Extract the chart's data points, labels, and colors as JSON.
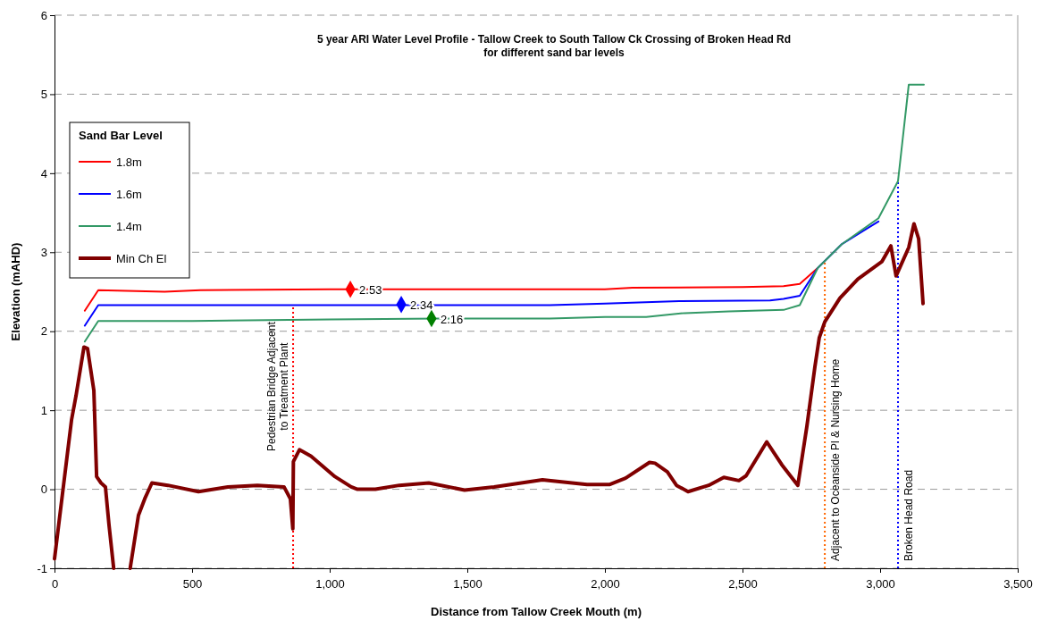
{
  "chart_data": {
    "type": "line",
    "title": "5 year ARI Water Level Profile - Tallow Creek to South Tallow Ck Crossing of Broken Head Rd",
    "subtitle": "for different sand bar levels",
    "xlabel": "Distance from Tallow Creek Mouth (m)",
    "ylabel": "Elevation (mAHD)",
    "legend_title": "Sand Bar Level",
    "legend": "top left",
    "grid": "y",
    "marker": "none",
    "line_style": "solid",
    "xlim": [
      0,
      3500
    ],
    "xticks": [
      0,
      500,
      {
        "value": 1000,
        "label": "1,000"
      },
      {
        "value": 1500,
        "label": "1,500"
      },
      {
        "value": 2000,
        "label": "2,000"
      },
      {
        "value": 2500,
        "label": "2,500"
      },
      {
        "value": 3000,
        "label": "3,000"
      },
      {
        "value": 3500,
        "label": "3,500"
      }
    ],
    "ylim": [
      -1,
      6
    ],
    "yticks": [
      -1,
      0,
      1,
      2,
      3,
      4,
      5,
      6
    ],
    "series": [
      {
        "name": "1.8m",
        "color": "#ff0000",
        "x": [
          110,
          159,
          400,
          530,
          1000,
          2000,
          2100,
          2500,
          2649,
          2708,
          2773
        ],
        "values": [
          2.26,
          2.52,
          2.5,
          2.52,
          2.53,
          2.53,
          2.55,
          2.56,
          2.57,
          2.6,
          2.8
        ]
      },
      {
        "name": "1.6m",
        "color": "#0000ff",
        "x": [
          110,
          159,
          1000,
          1800,
          2000,
          2270,
          2600,
          2649,
          2708,
          2773,
          2860,
          2994
        ],
        "values": [
          2.07,
          2.33,
          2.33,
          2.33,
          2.35,
          2.38,
          2.39,
          2.41,
          2.45,
          2.8,
          3.1,
          3.39
        ]
      },
      {
        "name": "1.4m",
        "color": "#339966",
        "x": [
          110,
          159,
          500,
          1000,
          1400,
          1800,
          2000,
          2150,
          2290,
          2450,
          2649,
          2708,
          2773,
          2860,
          2994,
          3065,
          3104,
          3159
        ],
        "values": [
          1.87,
          2.13,
          2.13,
          2.15,
          2.16,
          2.16,
          2.18,
          2.18,
          2.23,
          2.25,
          2.27,
          2.33,
          2.8,
          3.1,
          3.43,
          3.9,
          5.12,
          5.12
        ]
      },
      {
        "name": "Min Ch El",
        "color": "#800000",
        "x": [
          0,
          62,
          78,
          107,
          120,
          143,
          153,
          169,
          185,
          198,
          215,
          250,
          275,
          305,
          328,
          354,
          412,
          523,
          630,
          737,
          834,
          857,
          866,
          868,
          890,
          932,
          1019,
          1078,
          1101,
          1166,
          1253,
          1360,
          1490,
          1597,
          1773,
          1935,
          2016,
          2075,
          2162,
          2182,
          2227,
          2260,
          2302,
          2377,
          2432,
          2487,
          2513,
          2588,
          2643,
          2701,
          2734,
          2763,
          2779,
          2799,
          2854,
          2919,
          3006,
          3039,
          3058,
          3104,
          3123,
          3140,
          3156
        ],
        "values": [
          -0.88,
          0.88,
          1.18,
          1.8,
          1.78,
          1.25,
          0.16,
          0.08,
          0.03,
          -0.45,
          -1,
          null,
          -1,
          -0.33,
          -0.12,
          0.08,
          0.05,
          -0.03,
          0.03,
          0.05,
          0.03,
          -0.12,
          -0.5,
          0.35,
          0.5,
          0.42,
          0.16,
          0.03,
          0,
          0,
          0.05,
          0.08,
          -0.01,
          0.03,
          0.12,
          0.06,
          0.06,
          0.14,
          0.34,
          0.33,
          0.22,
          0.05,
          -0.03,
          0.05,
          0.15,
          0.11,
          0.17,
          0.6,
          0.31,
          0.05,
          0.8,
          1.55,
          1.92,
          2.12,
          2.42,
          2.66,
          2.88,
          3.08,
          2.7,
          3.06,
          3.36,
          3.17,
          2.35
        ]
      },
      {
        "type": "scatter",
        "marker": "diamond",
        "color": "#ff0000",
        "x": [
          1075
        ],
        "values": [
          2.53
        ],
        "value_labels": [
          "2.53"
        ]
      },
      {
        "type": "scatter",
        "marker": "diamond",
        "color": "#0000ff",
        "x": [
          1260
        ],
        "values": [
          2.34
        ],
        "value_labels": [
          "2.34"
        ]
      },
      {
        "type": "scatter",
        "marker": "diamond",
        "color": "#008000",
        "x": [
          1370
        ],
        "values": [
          2.16
        ],
        "value_labels": [
          "2.16"
        ]
      }
    ],
    "ref_lines": [
      {
        "axis": "x",
        "value": 867,
        "label": "Pedestrian Bridge Adjacent to Treatment Plant",
        "color": "#ff0000",
        "line_style": "dotted"
      },
      {
        "axis": "x",
        "value": 2799,
        "label": "Adjacent to Oceanside Pl & Nursing Home",
        "color": "#ff6600",
        "line_style": "dotted"
      },
      {
        "axis": "x",
        "value": 3065,
        "label": "Broken Head Road",
        "color": "#0000ff",
        "line_style": "dotted"
      }
    ]
  }
}
